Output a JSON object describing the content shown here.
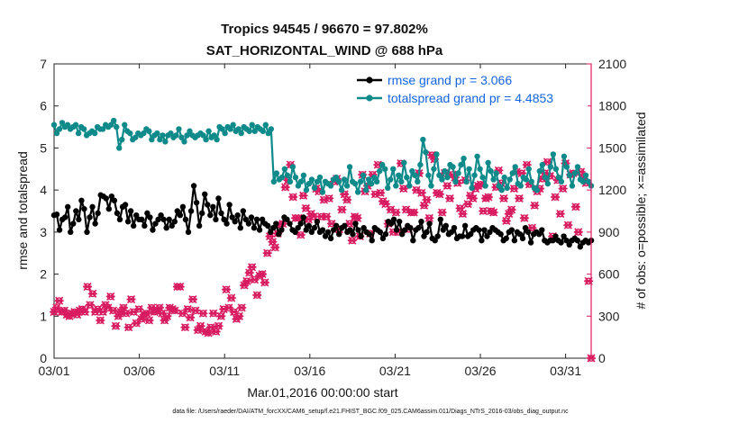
{
  "chart_data": {
    "type": "line",
    "title": "Tropics 94545 / 96670 = 97.802%",
    "subtitle": "SAT_HORIZONTAL_WIND @ 688 hPa",
    "xlabel": "Mar.01,2016 00:00:00 start",
    "ylabel_left": "rmse and totalspread",
    "ylabel_right": "# of obs: o=possible; ×=assimilated",
    "footer": "data file: /Users/raeder/DAI/ATM_forcXX/CAM6_setup/f.e21.FHIST_BGC.f09_025.CAM6assim.011/Diags_NTrS_2016-03/obs_diag_output.nc",
    "x_range": [
      0,
      31.5
    ],
    "x_ticks": [
      0,
      5,
      10,
      15,
      20,
      25,
      30
    ],
    "x_tick_labels": [
      "03/01",
      "03/06",
      "03/11",
      "03/16",
      "03/21",
      "03/26",
      "03/31"
    ],
    "ylim_left": [
      0,
      7
    ],
    "y_ticks_left": [
      0,
      1,
      2,
      3,
      4,
      5,
      6,
      7
    ],
    "ylim_right": [
      0,
      2100
    ],
    "y_ticks_right": [
      0,
      300,
      600,
      900,
      1200,
      1500,
      1800,
      2100
    ],
    "colors": {
      "rmse": "#000000",
      "totalspread": "#0e8a8a",
      "obs": "#d81b60",
      "legend_text": "#1565e0",
      "right_axis": "#d81b60"
    },
    "series": [
      {
        "name": "rmse grand pr = 3.066",
        "axis": "left",
        "values": [
          3.4,
          3.42,
          3.05,
          3.3,
          3.35,
          3.6,
          3.0,
          3.2,
          3.5,
          3.3,
          3.75,
          3.55,
          3.0,
          3.35,
          3.6,
          3.2,
          3.45,
          3.88,
          3.85,
          3.8,
          3.55,
          3.85,
          3.75,
          3.45,
          3.3,
          3.6,
          3.65,
          3.25,
          3.5,
          3.15,
          3.4,
          3.3,
          3.3,
          3.15,
          3.45,
          3.35,
          3.05,
          3.2,
          3.3,
          3.4,
          3.3,
          3.1,
          3.3,
          3.15,
          3.25,
          3.5,
          3.4,
          3.6,
          3.3,
          3.0,
          3.5,
          4.1,
          3.7,
          3.15,
          3.45,
          3.9,
          3.65,
          3.4,
          3.6,
          3.3,
          3.8,
          3.45,
          3.3,
          3.2,
          3.65,
          3.35,
          3.25,
          3.4,
          3.1,
          3.5,
          3.3,
          3.2,
          3.35,
          3.1,
          3.3,
          3.05,
          3.3,
          3.2,
          3.15,
          3.0,
          3.1,
          3.2,
          2.95,
          3.05,
          3.35,
          3.3,
          3.2,
          3.05,
          3.0,
          3.1,
          3.2,
          3.35,
          3.05,
          3.15,
          3.0,
          3.1,
          3.25,
          3.0,
          3.05,
          2.9,
          3.0,
          2.85,
          3.05,
          3.15,
          2.95,
          3.1,
          3.15,
          3.0,
          3.05,
          2.95,
          3.2,
          3.05,
          2.9,
          3.1,
          3.0,
          2.95,
          2.8,
          3.1,
          3.05,
          3.0,
          2.85,
          2.95,
          3.25,
          3.2,
          3.3,
          3.05,
          3.25,
          2.95,
          3.05,
          3.15,
          3.1,
          2.8,
          3.05,
          3.1,
          3.25,
          2.9,
          3.0,
          3.2,
          2.85,
          2.8,
          2.9,
          3.3,
          3.05,
          3.15,
          2.95,
          3.0,
          3.1,
          2.85,
          2.9,
          2.9,
          3.15,
          2.9,
          2.95,
          3.05,
          3.1,
          3.05,
          2.8,
          3.05,
          2.9,
          3.0,
          3.1,
          3.05,
          3.0,
          2.95,
          2.8,
          2.85,
          3.0,
          3.05,
          2.8,
          3.0,
          2.95,
          2.85,
          3.1,
          3.0,
          2.75,
          2.95,
          3.0,
          2.95,
          3.05,
          2.8,
          2.75,
          2.8,
          2.8,
          2.9,
          2.8,
          2.75,
          2.9,
          2.8,
          2.7,
          2.8,
          2.85,
          2.8,
          2.65,
          2.75,
          2.8,
          2.75,
          2.8
        ]
      },
      {
        "name": "totalspread grand pr = 4.4853",
        "axis": "left",
        "values": [
          5.55,
          5.35,
          5.45,
          5.6,
          5.5,
          5.55,
          5.45,
          5.5,
          5.55,
          5.35,
          5.5,
          5.45,
          5.3,
          5.35,
          5.4,
          5.35,
          5.5,
          5.45,
          5.45,
          5.55,
          5.5,
          5.55,
          5.65,
          5.5,
          5.0,
          5.2,
          5.55,
          5.4,
          5.35,
          5.2,
          5.25,
          5.35,
          5.3,
          5.35,
          5.45,
          5.4,
          5.2,
          5.3,
          5.35,
          5.2,
          5.3,
          5.15,
          5.3,
          5.35,
          5.25,
          5.3,
          5.45,
          5.25,
          5.15,
          5.3,
          5.4,
          5.3,
          5.25,
          5.3,
          5.35,
          5.3,
          5.2,
          5.4,
          5.25,
          5.3,
          5.2,
          5.5,
          5.45,
          5.35,
          5.5,
          5.45,
          5.55,
          5.4,
          5.45,
          5.35,
          5.5,
          5.45,
          5.4,
          5.55,
          5.4,
          5.5,
          5.45,
          5.4,
          5.55,
          5.35,
          5.45,
          4.2,
          4.4,
          4.25,
          4.3,
          4.5,
          4.35,
          4.2,
          4.55,
          4.3,
          4.1,
          4.2,
          4.35,
          4.0,
          4.15,
          4.25,
          4.05,
          4.2,
          4.3,
          3.95,
          4.2,
          4.15,
          4.1,
          4.25,
          4.3,
          4.2,
          4.0,
          4.25,
          4.1,
          4.55,
          4.2,
          4.15,
          3.95,
          4.2,
          4.35,
          4.0,
          4.25,
          4.15,
          4.3,
          4.2,
          4.45,
          4.6,
          4.5,
          4.05,
          4.25,
          4.5,
          4.1,
          4.35,
          4.2,
          4.65,
          4.3,
          4.1,
          4.45,
          4.35,
          4.2,
          4.6,
          5.2,
          4.9,
          4.35,
          4.1,
          4.5,
          4.85,
          4.35,
          4.25,
          4.45,
          4.3,
          4.6,
          4.55,
          4.2,
          4.4,
          4.6,
          4.75,
          4.2,
          4.5,
          4.05,
          4.35,
          4.8,
          4.5,
          4.3,
          4.1,
          4.65,
          4.45,
          4.25,
          4.4,
          4.1,
          4.0,
          4.3,
          4.05,
          4.25,
          4.4,
          4.55,
          4.15,
          4.1,
          4.3,
          4.25,
          4.5,
          4.2,
          4.05,
          4.0,
          4.45,
          4.6,
          4.3,
          4.15,
          4.55,
          4.85,
          4.5,
          4.3,
          4.2,
          4.8,
          4.55,
          4.35,
          4.1,
          4.4,
          4.55,
          4.25,
          4.2,
          4.35,
          4.2,
          4.1
        ]
      },
      {
        "name": "# of obs possible/assimilated",
        "axis": "right",
        "values": [
          330,
          360,
          410,
          330,
          340,
          310,
          300,
          320,
          330,
          310,
          340,
          350,
          330,
          510,
          380,
          460,
          330,
          350,
          270,
          330,
          380,
          360,
          440,
          340,
          230,
          300,
          330,
          360,
          320,
          220,
          420,
          330,
          250,
          350,
          280,
          310,
          320,
          270,
          360,
          330,
          340,
          360,
          320,
          270,
          300,
          360,
          350,
          340,
          510,
          510,
          320,
          220,
          350,
          290,
          420,
          340,
          200,
          230,
          320,
          190,
          180,
          220,
          320,
          190,
          230,
          300,
          350,
          490,
          360,
          430,
          330,
          280,
          300,
          360,
          520,
          550,
          610,
          650,
          560,
          450,
          590,
          600,
          540,
          750,
          870,
          830,
          790,
          890,
          950,
          960,
          1220,
          1270,
          1380,
          1150,
          1000,
          1000,
          880,
          1160,
          1070,
          990,
          1030,
          1010,
          1210,
          1190,
          1010,
          1130,
          1010,
          1140,
          960,
          1260,
          1280,
          920,
          1060,
          1170,
          1130,
          960,
          840,
          1010,
          1000,
          870,
          1310,
          1190,
          1230,
          890,
          1310,
          1170,
          1380,
          1180,
          1120,
          1100,
          960,
          1060,
          900,
          1040,
          900,
          1390,
          1210,
          1060,
          920,
          1040,
          1040,
          1200,
          1320,
          1180,
          1090,
          1130,
          1000,
          1450,
          1420,
          1180,
          1170,
          1040,
          1320,
          1230,
          1140,
          1310,
          1290,
          1250,
          1070,
          1030,
          1270,
          1100,
          1160,
          1140,
          1210,
          1230,
          1240,
          1050,
          1140,
          1150,
          1050,
          1040,
          1220,
          1340,
          1250,
          1140,
          980,
          1030,
          1060,
          1210,
          1330,
          1140,
          1320,
          1000,
          1380,
          1240,
          930,
          1090,
          1190,
          1210,
          1280,
          1320,
          1400,
          1300,
          870,
          1150,
          1270,
          1030,
          1210,
          1390,
          950,
          1310,
          1320,
          1080,
          900,
          1330,
          1290,
          1250,
          550,
          0
        ]
      }
    ]
  }
}
